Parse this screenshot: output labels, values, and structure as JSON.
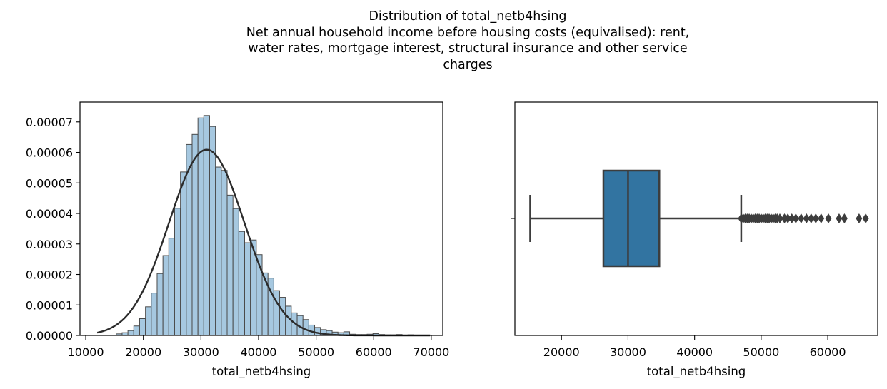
{
  "title_lines": [
    "Distribution of total_netb4hsing",
    "Net annual household income before housing costs (equivalised): rent,",
    "water rates, mortgage interest, structural insurance and other service",
    "charges"
  ],
  "chart_data": [
    {
      "type": "bar",
      "subtype": "histogram_with_normal_fit",
      "xlabel": "total_netb4hsing",
      "ylabel": "",
      "xlim": [
        9000,
        72000
      ],
      "ylim": [
        0,
        7.65e-05
      ],
      "xticks": [
        10000,
        20000,
        30000,
        40000,
        50000,
        60000,
        70000
      ],
      "yticks": [
        0.0,
        1e-05,
        2e-05,
        3e-05,
        4e-05,
        5e-05,
        6e-05,
        7e-05
      ],
      "ytick_labels": [
        "0.00000",
        "0.00001",
        "0.00002",
        "0.00003",
        "0.00004",
        "0.00005",
        "0.00006",
        "0.00007"
      ],
      "bin_start": 15300,
      "bin_width": 1013,
      "bar_color": "#a6c8e0",
      "edge_color": "#4a4a4a",
      "values": [
        5e-07,
        9e-07,
        1.6e-06,
        3.1e-06,
        5.5e-06,
        9.4e-06,
        1.39e-05,
        2.03e-05,
        2.62e-05,
        3.19e-05,
        4.17e-05,
        5.36e-05,
        6.26e-05,
        6.59e-05,
        7.13e-05,
        7.21e-05,
        6.85e-05,
        5.52e-05,
        5.41e-05,
        4.6e-05,
        4.16e-05,
        3.41e-05,
        3.04e-05,
        3.13e-05,
        2.65e-05,
        2.05e-05,
        1.88e-05,
        1.47e-05,
        1.25e-05,
        9.6e-06,
        7.4e-06,
        6.5e-06,
        5.2e-06,
        3.4e-06,
        2.6e-06,
        1.9e-06,
        1.6e-06,
        1.1e-06,
        9e-07,
        1.2e-06,
        4e-07,
        3e-07,
        3e-07,
        4e-07,
        6e-07,
        3e-07,
        2e-07,
        2e-07,
        3e-07,
        1e-07,
        2e-07,
        1e-07
      ],
      "normal_fit": {
        "mean": 31000,
        "sd": 6550,
        "x_range": [
          12000,
          69800
        ],
        "color": "#2b2b2b"
      }
    },
    {
      "type": "box",
      "xlabel": "total_netb4hsing",
      "xlim": [
        13000,
        67500
      ],
      "xticks": [
        20000,
        30000,
        40000,
        50000,
        60000
      ],
      "box_color": "#3274a1",
      "line_color": "#3d3d3d",
      "whisker_low": 15300,
      "q1": 26300,
      "median": 30000,
      "q3": 34700,
      "whisker_high": 47000,
      "outliers": [
        47000,
        47300,
        47600,
        47900,
        48200,
        48500,
        48800,
        49100,
        49400,
        49700,
        50000,
        50300,
        50600,
        50900,
        51200,
        51500,
        51800,
        52100,
        52400,
        52800,
        53500,
        54000,
        54600,
        55200,
        56000,
        56800,
        57500,
        58200,
        59000,
        60100,
        61700,
        62500,
        64700,
        65700
      ]
    }
  ]
}
